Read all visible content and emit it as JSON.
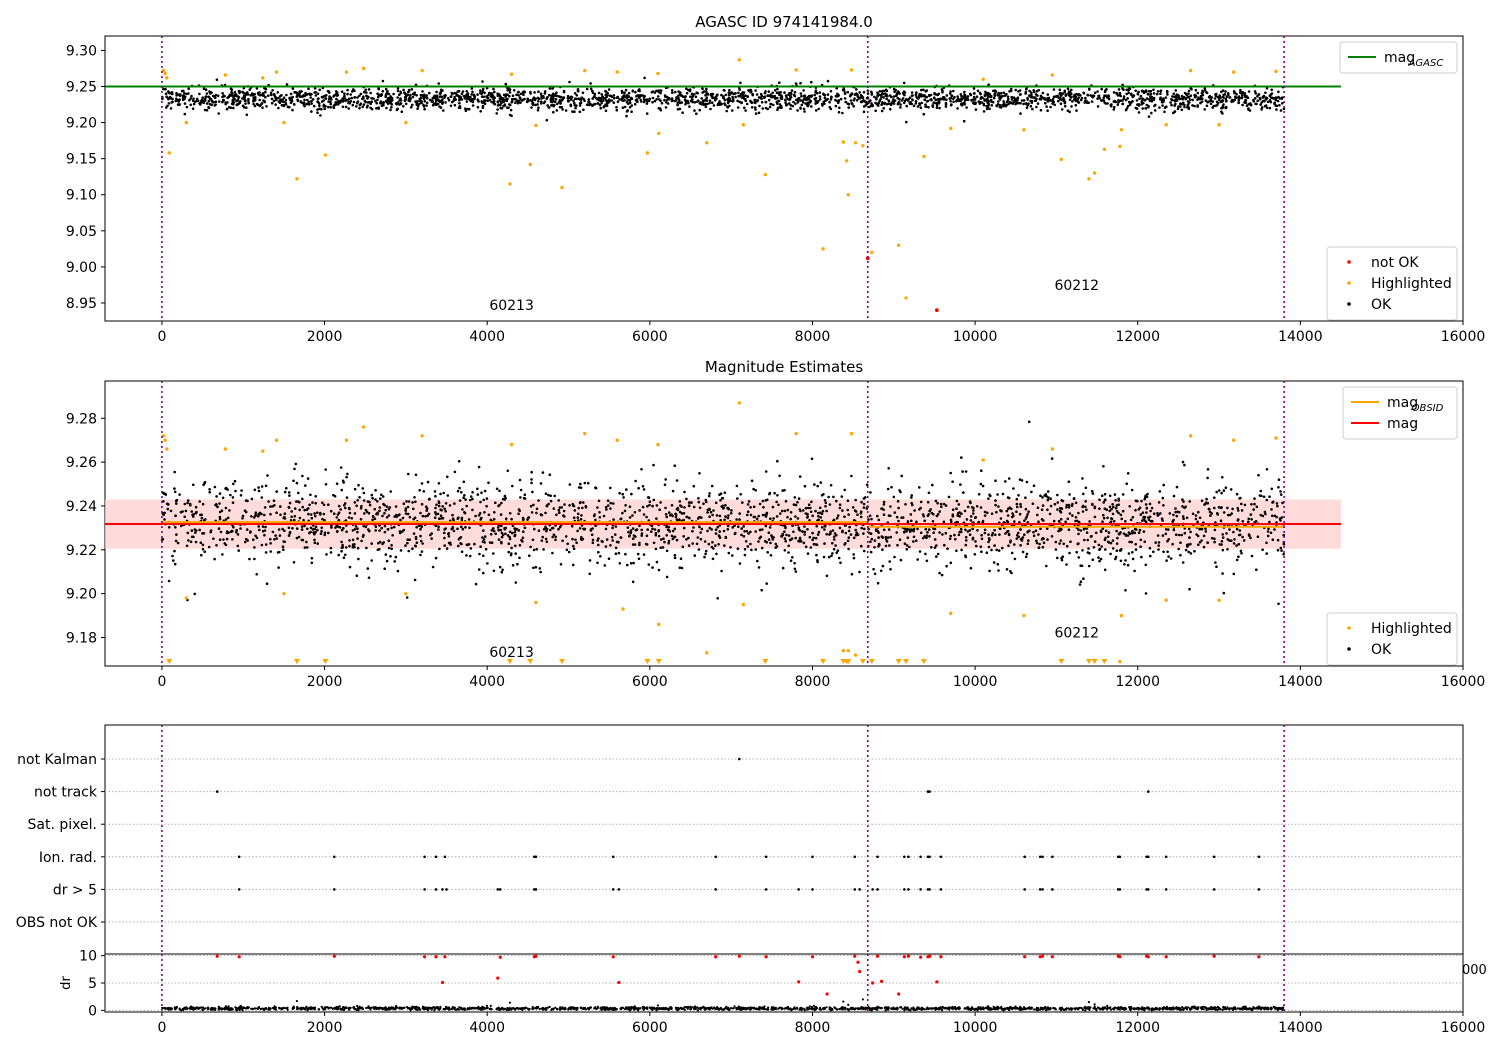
{
  "chart_data": [
    {
      "type": "scatter",
      "title": "AGASC ID 974141984.0",
      "xlim": [
        -700,
        16000
      ],
      "ylim": [
        8.925,
        9.32
      ],
      "xticks": [
        0,
        2000,
        4000,
        6000,
        8000,
        10000,
        12000,
        14000,
        16000
      ],
      "yticks": [
        8.95,
        9.0,
        9.05,
        9.1,
        9.15,
        9.2,
        9.25,
        9.3
      ],
      "ytick_labels": [
        "8.95",
        "9.00",
        "9.05",
        "9.10",
        "9.15",
        "9.20",
        "9.25",
        "9.30"
      ],
      "vlines": [
        0,
        8680,
        13800
      ],
      "vline_color": "#800080",
      "obsid_labels": [
        {
          "text": "60213",
          "x": 4300,
          "y": 8.94
        },
        {
          "text": "60212",
          "x": 11250,
          "y": 8.968
        }
      ],
      "hlines": [
        {
          "name": "mag_AGASC",
          "y": 9.25,
          "x0": -700,
          "x1": 14500,
          "color": "#008000"
        }
      ],
      "series": [
        {
          "name": "not OK",
          "color": "#ff0000",
          "points": [
            [
              8680,
              9.012
            ],
            [
              9530,
              8.94
            ]
          ]
        },
        {
          "name": "Highlighted",
          "color": "#ffa500",
          "points": [
            [
              90,
              9.158
            ],
            [
              1660,
              9.122
            ],
            [
              2010,
              9.155
            ],
            [
              4280,
              9.115
            ],
            [
              4530,
              9.142
            ],
            [
              4920,
              9.11
            ],
            [
              5970,
              9.158
            ],
            [
              6110,
              9.185
            ],
            [
              6700,
              9.172
            ],
            [
              7420,
              9.128
            ],
            [
              8130,
              9.025
            ],
            [
              8380,
              9.173
            ],
            [
              8420,
              9.147
            ],
            [
              8440,
              9.1
            ],
            [
              8530,
              9.172
            ],
            [
              8620,
              9.168
            ],
            [
              8730,
              9.02
            ],
            [
              9060,
              9.03
            ],
            [
              9150,
              8.957
            ],
            [
              9370,
              9.153
            ],
            [
              11060,
              9.149
            ],
            [
              11400,
              9.122
            ],
            [
              11470,
              9.13
            ],
            [
              11590,
              9.163
            ],
            [
              11780,
              9.167
            ],
            [
              40,
              9.268
            ],
            [
              60,
              9.262
            ],
            [
              20,
              9.272
            ],
            [
              780,
              9.266
            ],
            [
              1240,
              9.262
            ],
            [
              1410,
              9.27
            ],
            [
              2270,
              9.27
            ],
            [
              2480,
              9.275
            ],
            [
              3200,
              9.272
            ],
            [
              4300,
              9.267
            ],
            [
              5200,
              9.272
            ],
            [
              5600,
              9.27
            ],
            [
              6100,
              9.268
            ],
            [
              7100,
              9.287
            ],
            [
              7800,
              9.273
            ],
            [
              8480,
              9.273
            ],
            [
              10100,
              9.26
            ],
            [
              10950,
              9.266
            ],
            [
              12650,
              9.272
            ],
            [
              13180,
              9.27
            ],
            [
              13700,
              9.271
            ],
            [
              300,
              9.2
            ],
            [
              1500,
              9.2
            ],
            [
              3000,
              9.2
            ],
            [
              4600,
              9.196
            ],
            [
              7150,
              9.197
            ],
            [
              9700,
              9.192
            ],
            [
              10600,
              9.19
            ],
            [
              11800,
              9.19
            ],
            [
              12350,
              9.197
            ],
            [
              13000,
              9.197
            ]
          ]
        },
        {
          "name": "OK",
          "color": "#000000",
          "band_center": 9.233,
          "band_half_width": 0.014,
          "x_range": [
            0,
            13800
          ]
        }
      ],
      "legend": {
        "position": "upper-right",
        "entries": [
          "mag_AGASC"
        ]
      },
      "legend2": {
        "position": "lower-right",
        "entries": [
          "not OK",
          "Highlighted",
          "OK"
        ]
      }
    },
    {
      "type": "scatter",
      "title": "Magnitude Estimates",
      "xlim": [
        -700,
        16000
      ],
      "ylim": [
        9.167,
        9.297
      ],
      "xticks": [
        0,
        2000,
        4000,
        6000,
        8000,
        10000,
        12000,
        14000,
        16000
      ],
      "yticks": [
        9.18,
        9.2,
        9.22,
        9.24,
        9.26,
        9.28
      ],
      "ytick_labels": [
        "9.18",
        "9.20",
        "9.22",
        "9.24",
        "9.26",
        "9.28"
      ],
      "vlines": [
        0,
        8680,
        13800
      ],
      "vline_color": "#800080",
      "obsid_labels": [
        {
          "text": "60213",
          "x": 4300,
          "y": 9.171
        },
        {
          "text": "60212",
          "x": 11250,
          "y": 9.18
        }
      ],
      "hlines": [
        {
          "name": "mag",
          "y": 9.2318,
          "x0": -700,
          "x1": 14500,
          "color": "#ff0000"
        },
        {
          "name": "mag_OBSID",
          "y": 9.2326,
          "x0": 0,
          "x1": 8680,
          "color": "#ffa500"
        },
        {
          "name": "mag_OBSID",
          "y": 9.2305,
          "x0": 8680,
          "x1": 13800,
          "color": "#ffa500"
        }
      ],
      "band": {
        "y0": 9.2205,
        "y1": 9.243,
        "x0": -700,
        "x1": 14500,
        "color": "#ffcccc"
      },
      "series": [
        {
          "name": "Highlighted",
          "color": "#ffa500",
          "points": [
            [
              40,
              9.27
            ],
            [
              60,
              9.266
            ],
            [
              20,
              9.272
            ],
            [
              780,
              9.266
            ],
            [
              1240,
              9.265
            ],
            [
              1410,
              9.27
            ],
            [
              2270,
              9.27
            ],
            [
              2480,
              9.276
            ],
            [
              3200,
              9.272
            ],
            [
              4300,
              9.268
            ],
            [
              5200,
              9.273
            ],
            [
              5600,
              9.27
            ],
            [
              6100,
              9.268
            ],
            [
              7100,
              9.287
            ],
            [
              7800,
              9.273
            ],
            [
              8480,
              9.273
            ],
            [
              10100,
              9.261
            ],
            [
              10950,
              9.266
            ],
            [
              12650,
              9.272
            ],
            [
              13180,
              9.27
            ],
            [
              13700,
              9.271
            ],
            [
              300,
              9.198
            ],
            [
              1500,
              9.2
            ],
            [
              3000,
              9.2
            ],
            [
              4600,
              9.196
            ],
            [
              5670,
              9.193
            ],
            [
              6110,
              9.186
            ],
            [
              6700,
              9.173
            ],
            [
              7150,
              9.195
            ],
            [
              9700,
              9.191
            ],
            [
              10600,
              9.19
            ],
            [
              11800,
              9.19
            ],
            [
              12350,
              9.197
            ],
            [
              13000,
              9.197
            ],
            [
              8380,
              9.174
            ],
            [
              8440,
              9.174
            ],
            [
              8530,
              9.172
            ],
            [
              11780,
              9.169
            ]
          ]
        },
        {
          "name": "Highlighted (below axis)",
          "color": "#ffa500",
          "x": [
            90,
            1660,
            2010,
            4280,
            4530,
            4920,
            5970,
            6110,
            7420,
            8130,
            8380,
            8420,
            8440,
            8620,
            8730,
            9060,
            9150,
            9370,
            11060,
            11400,
            11470,
            11590
          ]
        },
        {
          "name": "OK",
          "color": "#000000",
          "band_center": 9.232,
          "band_half_width": 0.018,
          "x_range": [
            0,
            13800
          ]
        }
      ],
      "legend": {
        "position": "upper-right",
        "entries": [
          "mag_OBSID",
          "mag"
        ]
      },
      "legend2": {
        "position": "lower-right",
        "entries": [
          "Highlighted",
          "OK"
        ]
      }
    },
    {
      "type": "scatter",
      "title": "",
      "xlim": [
        -700,
        16000
      ],
      "yticks_flags": [
        "not Kalman",
        "not track",
        "Sat. pixel.",
        "Ion. rad.",
        "dr > 5",
        "OBS not OK"
      ],
      "vlines": [
        0,
        8680,
        13800
      ],
      "vline_color": "#800080",
      "flags": [
        {
          "label": "not Kalman",
          "x": [
            7100
          ]
        },
        {
          "label": "not track",
          "x": [
            680,
            9420,
            9440,
            12130
          ]
        },
        {
          "label": "Sat. pixel.",
          "x": []
        },
        {
          "label": "Ion. rad.",
          "x": [
            950,
            2120,
            3230,
            3370,
            3480,
            4580,
            4600,
            5550,
            6810,
            7430,
            8000,
            8520,
            8800,
            9130,
            9180,
            9330,
            9420,
            9440,
            9580,
            10610,
            10800,
            10830,
            10950,
            11760,
            11780,
            12110,
            12130,
            12350,
            12940,
            13490
          ]
        },
        {
          "label": "dr > 5",
          "x": [
            950,
            2120,
            3230,
            3370,
            3450,
            3500,
            4130,
            4160,
            4580,
            4600,
            5550,
            5620,
            6810,
            7430,
            7830,
            8000,
            8520,
            8580,
            8740,
            8800,
            9130,
            9180,
            9330,
            9420,
            9440,
            9580,
            10610,
            10800,
            10830,
            10950,
            11760,
            11780,
            12110,
            12130,
            12350,
            12940,
            13490
          ]
        },
        {
          "label": "OBS not OK",
          "x": []
        }
      ]
    },
    {
      "type": "scatter",
      "title": "",
      "ylabel": "dr",
      "xlim": [
        -700,
        16000
      ],
      "ylim": [
        -0.3,
        10.3
      ],
      "xticks": [
        0,
        2000,
        4000,
        6000,
        8000,
        10000,
        12000,
        14000,
        16000
      ],
      "yticks": [
        0,
        5,
        10
      ],
      "vlines": [
        0,
        8680,
        13800
      ],
      "vline_color": "#800080",
      "clipped_tick_label": "000",
      "series": [
        {
          "name": "dr > 5",
          "color": "#ff0000",
          "points": [
            [
              680,
              9.9
            ],
            [
              950,
              9.8
            ],
            [
              2120,
              9.9
            ],
            [
              3230,
              9.8
            ],
            [
              3370,
              9.8
            ],
            [
              3480,
              9.8
            ],
            [
              3450,
              5.1
            ],
            [
              4130,
              5.9
            ],
            [
              4160,
              9.7
            ],
            [
              4580,
              9.8
            ],
            [
              4600,
              9.9
            ],
            [
              5550,
              9.8
            ],
            [
              5620,
              5.1
            ],
            [
              6810,
              9.8
            ],
            [
              7100,
              9.9
            ],
            [
              7430,
              9.8
            ],
            [
              7830,
              5.2
            ],
            [
              8000,
              9.8
            ],
            [
              8180,
              3.0
            ],
            [
              8520,
              9.9
            ],
            [
              8560,
              8.8
            ],
            [
              8580,
              7.1
            ],
            [
              8740,
              5.0
            ],
            [
              8800,
              9.9
            ],
            [
              8850,
              5.3
            ],
            [
              9060,
              3.0
            ],
            [
              9130,
              9.8
            ],
            [
              9180,
              9.9
            ],
            [
              9330,
              9.7
            ],
            [
              9420,
              9.8
            ],
            [
              9440,
              9.9
            ],
            [
              9530,
              5.2
            ],
            [
              9580,
              9.8
            ],
            [
              10610,
              9.8
            ],
            [
              10800,
              9.8
            ],
            [
              10830,
              9.9
            ],
            [
              10950,
              9.8
            ],
            [
              11760,
              9.9
            ],
            [
              11780,
              9.8
            ],
            [
              12110,
              9.9
            ],
            [
              12130,
              9.8
            ],
            [
              12350,
              9.8
            ],
            [
              12940,
              9.9
            ],
            [
              13490,
              9.8
            ]
          ]
        },
        {
          "name": "OK",
          "color": "#000000",
          "band_center": 0.35,
          "band_half_width": 0.3,
          "x_range": [
            0,
            13800
          ],
          "extra_points": [
            [
              1660,
              1.7
            ],
            [
              4280,
              1.4
            ],
            [
              8380,
              1.6
            ],
            [
              8440,
              1.0
            ],
            [
              8620,
              2.0
            ],
            [
              11400,
              1.5
            ],
            [
              11470,
              1.1
            ],
            [
              6100,
              0.9
            ]
          ]
        }
      ]
    }
  ]
}
